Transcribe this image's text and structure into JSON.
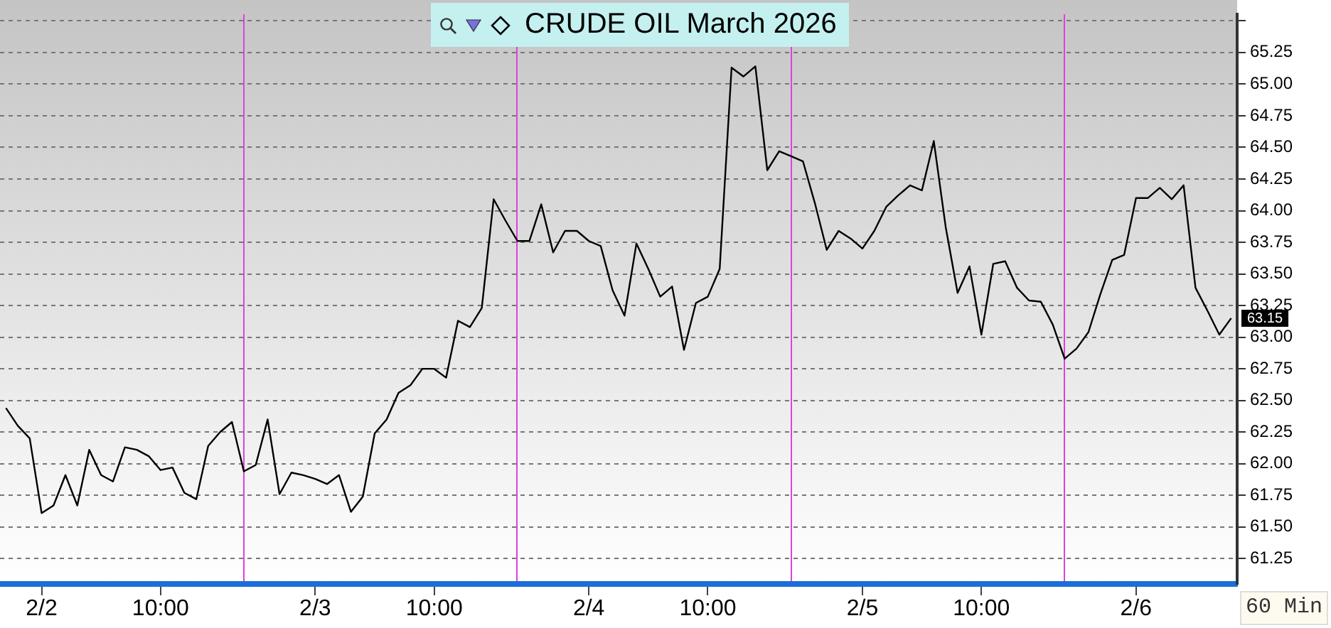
{
  "chart_data": {
    "type": "line",
    "title": "CRUDE OIL March 2026",
    "categories": [
      null,
      null,
      null,
      "2/2",
      null,
      null,
      null,
      null,
      null,
      null,
      null,
      null,
      null,
      "10:00",
      null,
      null,
      null,
      null,
      null,
      null,
      null,
      null,
      null,
      null,
      null,
      null,
      "2/3",
      null,
      null,
      null,
      null,
      null,
      null,
      null,
      null,
      null,
      "10:00",
      null,
      null,
      null,
      null,
      null,
      null,
      null,
      null,
      null,
      null,
      null,
      null,
      "2/4",
      null,
      null,
      null,
      null,
      null,
      null,
      null,
      null,
      null,
      "10:00",
      null,
      null,
      null,
      null,
      null,
      null,
      null,
      null,
      null,
      null,
      null,
      null,
      "2/5",
      null,
      null,
      null,
      null,
      null,
      null,
      null,
      null,
      null,
      "10:00",
      null,
      null,
      null,
      null,
      null,
      null,
      null,
      null,
      null,
      null,
      null,
      null,
      "2/6",
      null,
      null,
      null,
      null,
      null,
      null,
      null,
      null
    ],
    "series": [
      {
        "color": "#000000",
        "values": [
          62.44,
          62.3,
          62.2,
          61.61,
          61.67,
          61.91,
          61.67,
          62.11,
          61.91,
          61.86,
          62.13,
          62.11,
          62.06,
          61.95,
          61.97,
          61.77,
          61.72,
          62.14,
          62.25,
          62.33,
          61.94,
          61.99,
          62.35,
          61.76,
          61.93,
          61.91,
          61.88,
          61.84,
          61.91,
          61.62,
          61.74,
          62.24,
          62.35,
          62.56,
          62.62,
          62.75,
          62.75,
          62.68,
          63.13,
          63.08,
          63.23,
          64.09,
          63.92,
          63.76,
          63.76,
          64.05,
          63.67,
          63.84,
          63.84,
          63.76,
          63.72,
          63.37,
          63.17,
          63.74,
          63.54,
          63.32,
          63.4,
          62.9,
          63.27,
          63.32,
          63.54,
          65.13,
          65.06,
          65.14,
          64.32,
          64.47,
          64.43,
          64.39,
          64.06,
          63.69,
          63.84,
          63.78,
          63.7,
          63.84,
          64.03,
          64.12,
          64.2,
          64.16,
          64.55,
          63.87,
          63.35,
          63.56,
          63.02,
          63.58,
          63.6,
          63.39,
          63.29,
          63.28,
          63.1,
          62.83,
          62.91,
          63.04,
          63.34,
          63.61,
          63.65,
          64.1,
          64.1,
          64.18,
          64.09,
          64.2,
          63.39,
          63.21,
          63.02,
          63.15
        ]
      }
    ],
    "ylim": [
      61.05,
      65.55
    ],
    "yticks": [
      {
        "value": 61.25,
        "label": "61.25"
      },
      {
        "value": 61.5,
        "label": "61.50"
      },
      {
        "value": 61.75,
        "label": "61.75"
      },
      {
        "value": 62,
        "label": "62.00"
      },
      {
        "value": 62.25,
        "label": "62.25"
      },
      {
        "value": 62.5,
        "label": "62.50"
      },
      {
        "value": 62.75,
        "label": "62.75"
      },
      {
        "value": 63,
        "label": "63.00"
      },
      {
        "value": 63.25,
        "label": "63.25"
      },
      {
        "value": 63.5,
        "label": "63.50"
      },
      {
        "value": 63.75,
        "label": "63.75"
      },
      {
        "value": 64,
        "label": "64.00"
      },
      {
        "value": 64.25,
        "label": "64.25"
      },
      {
        "value": 64.5,
        "label": "64.50"
      },
      {
        "value": 64.75,
        "label": "64.75"
      },
      {
        "value": 65,
        "label": "65.00"
      },
      {
        "value": 65.25,
        "label": "65.25"
      },
      {
        "value": 65.5,
        "label": null
      }
    ],
    "annotations": [
      "63.15",
      "60 Min"
    ],
    "grid": "y",
    "line_style": "solid",
    "marker": "none",
    "legend": false
  }
}
